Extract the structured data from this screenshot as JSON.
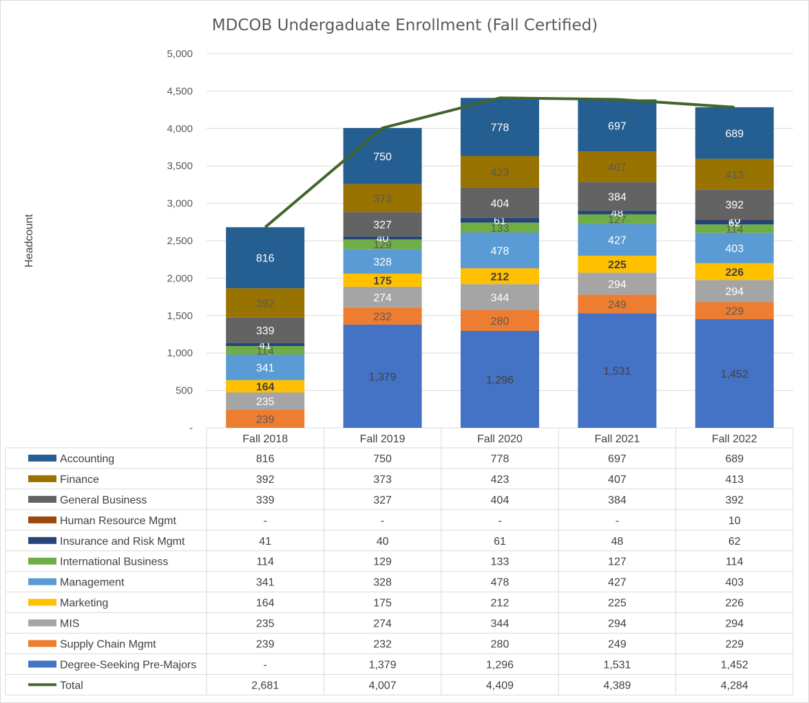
{
  "chart_data": {
    "type": "bar",
    "stacked": true,
    "title": "MDCOB Undergaduate Enrollment (Fall Certified)",
    "ylabel": "Headcount",
    "ylim": [
      0,
      5000
    ],
    "yticks": [
      "-",
      "500",
      "1,000",
      "1,500",
      "2,000",
      "2,500",
      "3,000",
      "3,500",
      "4,000",
      "4,500",
      "5,000"
    ],
    "categories": [
      "Fall 2018",
      "Fall 2019",
      "Fall 2020",
      "Fall 2021",
      "Fall 2022"
    ],
    "series": [
      {
        "name": "Accounting",
        "color": "#255e91",
        "label_color": "#ffffff",
        "bold": false,
        "values": [
          816,
          750,
          778,
          697,
          689
        ],
        "display": [
          "816",
          "750",
          "778",
          "697",
          "689"
        ]
      },
      {
        "name": "Finance",
        "color": "#997300",
        "label_color": "#595959",
        "bold": false,
        "values": [
          392,
          373,
          423,
          407,
          413
        ],
        "display": [
          "392",
          "373",
          "423",
          "407",
          "413"
        ]
      },
      {
        "name": "General Business",
        "color": "#636363",
        "label_color": "#ffffff",
        "bold": false,
        "values": [
          339,
          327,
          404,
          384,
          392
        ],
        "display": [
          "339",
          "327",
          "404",
          "384",
          "392"
        ]
      },
      {
        "name": "Human Resource Mgmt",
        "color": "#9e480e",
        "label_color": "#ffffff",
        "bold": false,
        "values": [
          0,
          0,
          0,
          0,
          10
        ],
        "display": [
          "-",
          "-",
          "-",
          "-",
          "10"
        ]
      },
      {
        "name": "Insurance and Risk Mgmt",
        "color": "#264478",
        "label_color": "#ffffff",
        "bold": false,
        "values": [
          41,
          40,
          61,
          48,
          62
        ],
        "display": [
          "41",
          "40",
          "61",
          "48",
          "62"
        ]
      },
      {
        "name": "International Business",
        "color": "#70ad47",
        "label_color": "#595959",
        "bold": false,
        "values": [
          114,
          129,
          133,
          127,
          114
        ],
        "display": [
          "114",
          "129",
          "133",
          "127",
          "114"
        ]
      },
      {
        "name": "Management",
        "color": "#5b9bd5",
        "label_color": "#ffffff",
        "bold": false,
        "values": [
          341,
          328,
          478,
          427,
          403
        ],
        "display": [
          "341",
          "328",
          "478",
          "427",
          "403"
        ]
      },
      {
        "name": "Marketing",
        "color": "#ffc000",
        "label_color": "#404040",
        "bold": true,
        "values": [
          164,
          175,
          212,
          225,
          226
        ],
        "display": [
          "164",
          "175",
          "212",
          "225",
          "226"
        ]
      },
      {
        "name": "MIS",
        "color": "#a5a5a5",
        "label_color": "#ffffff",
        "bold": false,
        "values": [
          235,
          274,
          344,
          294,
          294
        ],
        "display": [
          "235",
          "274",
          "344",
          "294",
          "294"
        ]
      },
      {
        "name": "Supply Chain Mgmt",
        "color": "#ed7d31",
        "label_color": "#595959",
        "bold": false,
        "values": [
          239,
          232,
          280,
          249,
          229
        ],
        "display": [
          "239",
          "232",
          "280",
          "249",
          "229"
        ]
      },
      {
        "name": "Degree-Seeking Pre-Majors",
        "color": "#4472c4",
        "label_color": "#404040",
        "bold": false,
        "values": [
          0,
          1379,
          1296,
          1531,
          1452
        ],
        "display": [
          "-",
          "1,379",
          "1,296",
          "1,531",
          "1,452"
        ]
      }
    ],
    "line_series": {
      "name": "Total",
      "type": "line",
      "color": "#41662b",
      "values": [
        2681,
        4007,
        4409,
        4389,
        4284
      ],
      "display": [
        "2,681",
        "4,007",
        "4,409",
        "4,389",
        "4,284"
      ]
    },
    "grid": true,
    "legend": "data-table"
  }
}
